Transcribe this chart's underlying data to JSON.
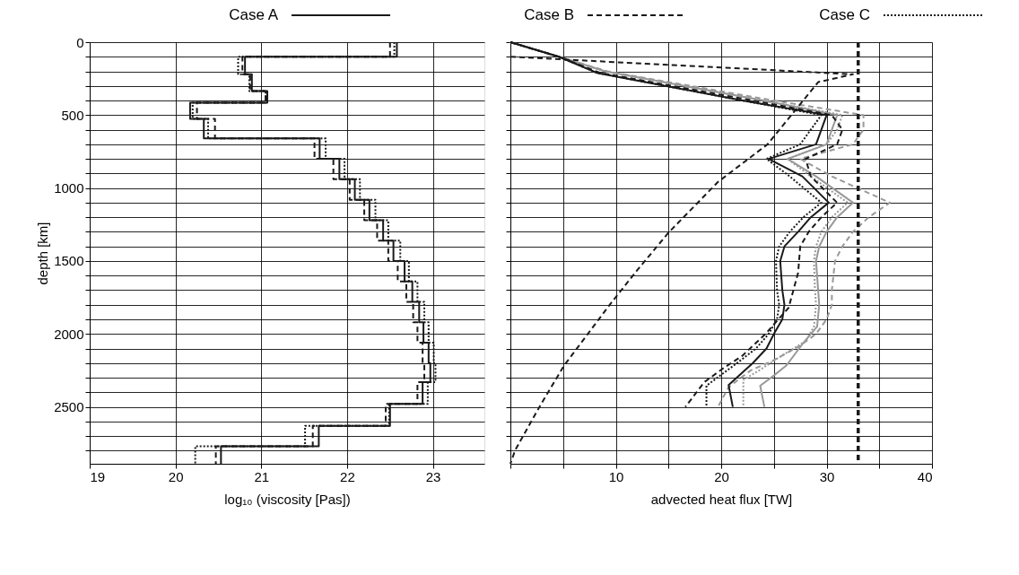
{
  "chart_data": [
    {
      "type": "line",
      "xlabel": "log₁₀ (viscosity [Pas])",
      "ylabel": "depth [km]",
      "xlim": [
        19,
        23.6
      ],
      "xticks": [
        19,
        20,
        21,
        22,
        23
      ],
      "ylim": [
        2890,
        0
      ],
      "yticks": [
        0,
        {
          "value": 100,
          "label": null
        },
        {
          "value": 200,
          "label": null
        },
        {
          "value": 300,
          "label": null
        },
        {
          "value": 400,
          "label": null
        },
        500,
        {
          "value": 600,
          "label": null
        },
        {
          "value": 700,
          "label": null
        },
        {
          "value": 800,
          "label": null
        },
        {
          "value": 900,
          "label": null
        },
        1000,
        {
          "value": 1100,
          "label": null
        },
        {
          "value": 1200,
          "label": null
        },
        {
          "value": 1300,
          "label": null
        },
        {
          "value": 1400,
          "label": null
        },
        1500,
        {
          "value": 1600,
          "label": null
        },
        {
          "value": 1700,
          "label": null
        },
        {
          "value": 1800,
          "label": null
        },
        {
          "value": 1900,
          "label": null
        },
        2000,
        {
          "value": 2100,
          "label": null
        },
        {
          "value": 2200,
          "label": null
        },
        {
          "value": 2300,
          "label": null
        },
        {
          "value": 2400,
          "label": null
        },
        2500,
        {
          "value": 2600,
          "label": null
        },
        {
          "value": 2700,
          "label": null
        },
        {
          "value": 2800,
          "label": null
        }
      ],
      "grid": true,
      "legend": "top",
      "series": [
        {
          "name": "Case A",
          "color": "#1a1a1a",
          "line_style": "solid",
          "x": [
            22.58,
            22.58,
            20.81,
            20.81,
            20.89,
            20.89,
            21.07,
            21.07,
            20.17,
            20.17,
            20.33,
            20.33,
            21.68,
            21.68,
            21.91,
            21.91,
            22.09,
            22.09,
            22.26,
            22.26,
            22.42,
            22.42,
            22.54,
            22.54,
            22.67,
            22.67,
            22.76,
            22.76,
            22.84,
            22.84,
            22.89,
            22.89,
            22.95,
            22.95,
            22.97,
            22.97,
            22.88,
            22.88,
            22.5,
            22.5,
            21.67,
            21.67,
            20.53,
            20.53
          ],
          "values": [
            0,
            100,
            100,
            220,
            220,
            335,
            335,
            415,
            415,
            525,
            525,
            660,
            660,
            800,
            800,
            940,
            940,
            1080,
            1080,
            1220,
            1220,
            1360,
            1360,
            1500,
            1500,
            1640,
            1640,
            1780,
            1780,
            1920,
            1920,
            2060,
            2060,
            2200,
            2200,
            2330,
            2330,
            2480,
            2480,
            2630,
            2630,
            2770,
            2770,
            2890
          ]
        },
        {
          "name": "Case B",
          "color": "#1a1a1a",
          "line_style": "dashed",
          "x": [
            22.5,
            22.5,
            20.78,
            20.78,
            20.87,
            20.87,
            21.05,
            21.05,
            20.25,
            20.25,
            20.46,
            20.46,
            21.62,
            21.62,
            21.84,
            21.84,
            22.03,
            22.03,
            22.2,
            22.2,
            22.35,
            22.35,
            22.48,
            22.48,
            22.59,
            22.59,
            22.69,
            22.69,
            22.77,
            22.77,
            22.82,
            22.82,
            22.88,
            22.88,
            22.9,
            22.9,
            22.82,
            22.82,
            22.45,
            22.45,
            21.6,
            21.6,
            20.47,
            20.47
          ],
          "values": [
            0,
            100,
            100,
            220,
            220,
            335,
            335,
            415,
            415,
            525,
            525,
            660,
            660,
            800,
            800,
            940,
            940,
            1080,
            1080,
            1220,
            1220,
            1360,
            1360,
            1500,
            1500,
            1640,
            1640,
            1780,
            1780,
            1920,
            1920,
            2060,
            2060,
            2200,
            2200,
            2330,
            2330,
            2480,
            2480,
            2630,
            2630,
            2770,
            2770,
            2890
          ]
        },
        {
          "name": "Case C",
          "color": "#1a1a1a",
          "line_style": "dotted",
          "x": [
            22.55,
            22.55,
            20.73,
            20.73,
            20.86,
            20.86,
            21.05,
            21.05,
            20.2,
            20.2,
            20.38,
            20.38,
            21.75,
            21.75,
            21.97,
            21.97,
            22.15,
            22.15,
            22.33,
            22.33,
            22.48,
            22.48,
            22.62,
            22.62,
            22.72,
            22.72,
            22.82,
            22.82,
            22.9,
            22.9,
            22.95,
            22.95,
            23.01,
            23.01,
            23.03,
            23.03,
            22.94,
            22.94,
            22.49,
            22.49,
            21.51,
            21.51,
            20.23,
            20.23
          ],
          "values": [
            0,
            100,
            100,
            220,
            220,
            335,
            335,
            415,
            415,
            525,
            525,
            660,
            660,
            800,
            800,
            940,
            940,
            1080,
            1080,
            1220,
            1220,
            1360,
            1360,
            1500,
            1500,
            1640,
            1640,
            1780,
            1780,
            1920,
            1920,
            2060,
            2060,
            2200,
            2200,
            2330,
            2330,
            2480,
            2480,
            2630,
            2630,
            2770,
            2770,
            2890
          ]
        }
      ]
    },
    {
      "type": "line",
      "xlabel": "advected heat flux [TW]",
      "xlim": [
        0,
        40
      ],
      "xticks": [
        {
          "value": 0,
          "label": null
        },
        {
          "value": 5,
          "label": null
        },
        10,
        {
          "value": 15,
          "label": null
        },
        20,
        {
          "value": 25,
          "label": null
        },
        30,
        {
          "value": 35,
          "label": null
        },
        40
      ],
      "ylim": [
        2890,
        0
      ],
      "yticks": [
        0,
        {
          "value": 100,
          "label": null
        },
        {
          "value": 200,
          "label": null
        },
        {
          "value": 300,
          "label": null
        },
        {
          "value": 400,
          "label": null
        },
        500,
        {
          "value": 600,
          "label": null
        },
        {
          "value": 700,
          "label": null
        },
        {
          "value": 800,
          "label": null
        },
        {
          "value": 900,
          "label": null
        },
        1000,
        {
          "value": 1100,
          "label": null
        },
        {
          "value": 1200,
          "label": null
        },
        {
          "value": 1300,
          "label": null
        },
        {
          "value": 1400,
          "label": null
        },
        1500,
        {
          "value": 1600,
          "label": null
        },
        {
          "value": 1700,
          "label": null
        },
        {
          "value": 1800,
          "label": null
        },
        {
          "value": 1900,
          "label": null
        },
        2000,
        {
          "value": 2100,
          "label": null
        },
        {
          "value": 2200,
          "label": null
        },
        {
          "value": 2300,
          "label": null
        },
        {
          "value": 2400,
          "label": null
        },
        2500,
        {
          "value": 2600,
          "label": null
        },
        {
          "value": 2700,
          "label": null
        },
        {
          "value": 2800,
          "label": null
        }
      ],
      "grid": true,
      "tick_labels": "x",
      "ref_lines": [
        {
          "axis": "x",
          "value": 33,
          "color": "#1a1a1a",
          "line_style": "dashed"
        }
      ],
      "series": [
        {
          "color": "#999999",
          "line_style": "solid",
          "x": [
            0,
            4.6,
            9,
            24,
            31,
            30.5,
            30,
            26.3,
            29,
            32.5,
            31,
            30,
            29.3,
            29,
            29.2,
            29.3,
            29.1,
            27.7,
            26.2,
            25,
            23.7,
            24.1
          ],
          "values": [
            0,
            100,
            200,
            400,
            500,
            600,
            700,
            800,
            920,
            1100,
            1200,
            1300,
            1400,
            1500,
            1700,
            1800,
            1950,
            2070,
            2215,
            2285,
            2355,
            2500
          ]
        },
        {
          "color": "#999999",
          "line_style": "dashed",
          "x": [
            0,
            4.6,
            9.2,
            25,
            33.5,
            33.5,
            32.5,
            27.5,
            30.5,
            36,
            34,
            32.5,
            31.5,
            30.8,
            30.5,
            30.5,
            30,
            29,
            27.5,
            25,
            22.8,
            20.7,
            19.7
          ],
          "values": [
            0,
            100,
            200,
            400,
            500,
            600,
            700,
            800,
            920,
            1100,
            1200,
            1300,
            1400,
            1500,
            1700,
            1800,
            1900,
            2000,
            2080,
            2180,
            2250,
            2365,
            2500
          ]
        },
        {
          "color": "#999999",
          "line_style": "dotted",
          "x": [
            0,
            4.6,
            9,
            24,
            31.5,
            31,
            30,
            26.3,
            28.5,
            32,
            30.5,
            29.5,
            29,
            28.8,
            28.9,
            29,
            28.8,
            28,
            25.5,
            23.6,
            22.1,
            22.1
          ],
          "values": [
            0,
            100,
            200,
            400,
            500,
            600,
            700,
            800,
            920,
            1100,
            1200,
            1300,
            1400,
            1500,
            1700,
            1800,
            1950,
            2050,
            2160,
            2250,
            2315,
            2500
          ]
        },
        {
          "color": "#1a1a1a",
          "line_style": "solid",
          "x": [
            0,
            4.6,
            8.2,
            22,
            30,
            29.5,
            29,
            24.5,
            27.7,
            30.2,
            28.5,
            27.3,
            26,
            25.6,
            25.8,
            26,
            25.8,
            25,
            24.3,
            23,
            20.7,
            21.1
          ],
          "values": [
            0,
            100,
            210,
            400,
            500,
            600,
            700,
            800,
            920,
            1100,
            1200,
            1300,
            1400,
            1500,
            1700,
            1800,
            1900,
            2000,
            2100,
            2200,
            2350,
            2500
          ]
        },
        {
          "color": "#1a1a1a",
          "line_style": "dashed",
          "x": [
            0,
            4.6,
            8.5,
            23,
            30.5,
            31.5,
            31,
            28,
            28.5,
            31,
            29.5,
            28.3,
            27.5,
            27.3,
            26.4,
            24.2,
            22,
            20.3,
            18.4,
            16.6
          ],
          "values": [
            0,
            100,
            210,
            400,
            500,
            600,
            700,
            800,
            920,
            1100,
            1200,
            1300,
            1400,
            1580,
            1820,
            2000,
            2150,
            2230,
            2330,
            2500
          ]
        },
        {
          "color": "#1a1a1a",
          "line_style": "dotted",
          "x": [
            0,
            4.6,
            8.2,
            22,
            29.5,
            28.5,
            27.5,
            24.3,
            26.5,
            29.5,
            27.8,
            26.5,
            25.5,
            25.2,
            25.3,
            25.5,
            25.3,
            24.5,
            23.3,
            21.5,
            18.6,
            18.6
          ],
          "values": [
            0,
            100,
            210,
            400,
            500,
            600,
            700,
            800,
            920,
            1100,
            1200,
            1300,
            1400,
            1500,
            1700,
            1800,
            1900,
            2000,
            2100,
            2200,
            2355,
            2500
          ]
        },
        {
          "color": "#1a1a1a",
          "line_style": "dashed",
          "x": [
            0,
            32.5,
            29.2,
            24.4,
            19.7,
            15,
            12,
            9.5,
            5.1,
            2.9,
            0.45,
            0
          ],
          "values": [
            100,
            220,
            274,
            700,
            958,
            1306,
            1566,
            1793,
            2216,
            2482,
            2797,
            2890
          ]
        }
      ]
    }
  ]
}
